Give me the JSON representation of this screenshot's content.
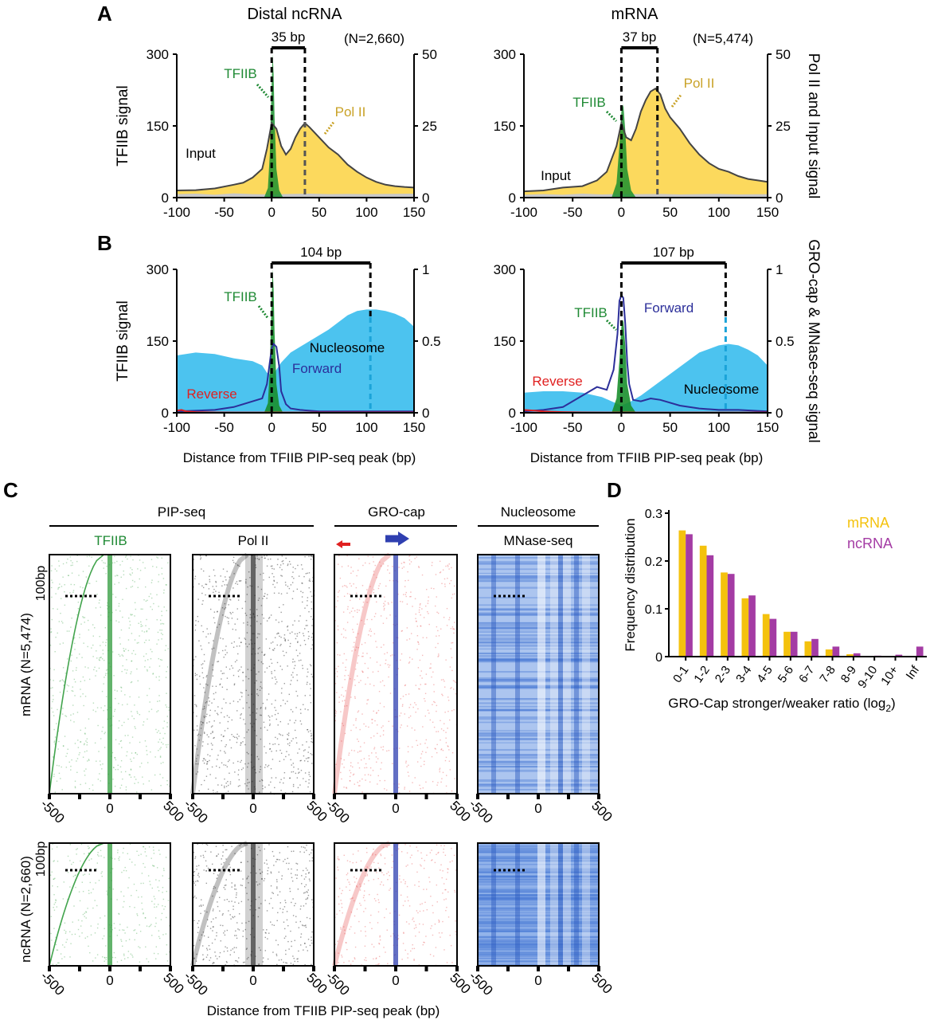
{
  "colors": {
    "tfiib": "#1f8a34",
    "tfiib_fill": "#1a8f2e",
    "pol2_fill": "#fcd95d",
    "pol2_text": "#c9a227",
    "input_fill": "#c8c8c8",
    "nucleosome_fill": "#4cc3ef",
    "forward": "#2c2f9a",
    "reverse": "#e02020",
    "mrna_bar": "#f4c20d",
    "ncrna_bar": "#a43ca4",
    "heat_green": "#2e9a3a",
    "heat_black": "#222222",
    "heat_red": "#e23a3a",
    "heat_blue": "#2f3fb0",
    "heat_mnase": "#3d6fd0"
  },
  "panelA": {
    "label": "A",
    "left_title": "Distal ncRNA",
    "right_title": "mRNA",
    "left_n": "(N=2,660)",
    "right_n": "(N=5,474)",
    "left_gap": "35 bp",
    "right_gap": "37 bp",
    "ylabel_left": "TFIIB signal",
    "ylabel_right": "Pol II and Input signal",
    "lbl_tfiib": "TFIIB",
    "lbl_pol2": "Pol II",
    "lbl_input": "Input"
  },
  "panelB": {
    "label": "B",
    "left_gap": "104 bp",
    "right_gap": "107 bp",
    "ylabel_left": "TFIIB signal",
    "ylabel_right": "GRO-cap & MNase-seq signal",
    "xlabel": "Distance from TFIIB PIP-seq peak (bp)",
    "lbl_tfiib": "TFIIB",
    "lbl_forward": "Forward",
    "lbl_reverse": "Reverse",
    "lbl_nucleosome": "Nucleosome"
  },
  "panelC": {
    "label": "C",
    "group_pipseq": "PIP-seq",
    "group_grocap": "GRO-cap",
    "group_nucleosome": "Nucleosome",
    "col_tfiib": "TFIIB",
    "col_pol2": "Pol II",
    "col_mnase": "MNase-seq",
    "row_mrna": "mRNA (N=5,474)",
    "row_ncrna": "ncRNA (N=2,660)",
    "scale_label": "100bp",
    "xlabel": "Distance from TFIIB PIP-seq peak (bp)",
    "ticks": [
      "-500",
      "0",
      "500"
    ]
  },
  "panelD": {
    "label": "D",
    "legend_mrna": "mRNA",
    "legend_ncrna": "ncRNA"
  },
  "chart_data": [
    {
      "type": "area",
      "panel": "A-left",
      "title": "Distal ncRNA",
      "xlim": [
        -100,
        150
      ],
      "xticks": [
        -100,
        -50,
        0,
        50,
        100,
        150
      ],
      "ylim_left": [
        0,
        300
      ],
      "yticks_left": [
        0,
        150,
        300
      ],
      "ylim_right": [
        0,
        50
      ],
      "yticks_right": [
        0,
        25,
        50
      ],
      "series": [
        {
          "name": "TFIIB",
          "axis": "left",
          "x": [
            -8,
            -4,
            -2,
            0,
            1,
            2,
            3,
            5,
            8,
            12
          ],
          "y": [
            0,
            20,
            90,
            240,
            300,
            260,
            170,
            60,
            15,
            0
          ]
        },
        {
          "name": "Pol II",
          "axis": "right",
          "x": [
            -100,
            -80,
            -60,
            -40,
            -30,
            -20,
            -10,
            -5,
            0,
            5,
            10,
            15,
            20,
            25,
            30,
            35,
            40,
            50,
            60,
            70,
            80,
            90,
            100,
            110,
            120,
            130,
            140,
            150
          ],
          "y": [
            2.5,
            2.6,
            3.2,
            4.5,
            5.2,
            7,
            10,
            17,
            26,
            24,
            18,
            15,
            17,
            21,
            24,
            26,
            24.5,
            21,
            17.5,
            15,
            11.5,
            9,
            7,
            5.5,
            4.5,
            4,
            3.7,
            3.5
          ]
        },
        {
          "name": "Input",
          "axis": "right",
          "x": [
            -100,
            -80,
            -60,
            -40,
            -20,
            0,
            20,
            40,
            60,
            80,
            100,
            120,
            150
          ],
          "y": [
            1.2,
            1.4,
            1.0,
            1.5,
            1.2,
            1.1,
            1.3,
            1.4,
            1.2,
            1.3,
            1.2,
            1.3,
            1.4
          ]
        }
      ],
      "annotation": {
        "from": 0,
        "to": 35,
        "label": "35 bp"
      }
    },
    {
      "type": "area",
      "panel": "A-right",
      "title": "mRNA",
      "xlim": [
        -100,
        150
      ],
      "xticks": [
        -100,
        -50,
        0,
        50,
        100,
        150
      ],
      "ylim_left": [
        0,
        300
      ],
      "yticks_left": [
        0,
        150,
        300
      ],
      "ylim_right": [
        0,
        50
      ],
      "yticks_right": [
        0,
        25,
        50
      ],
      "series": [
        {
          "name": "TFIIB",
          "axis": "left",
          "x": [
            -10,
            -5,
            -2,
            0,
            2,
            4,
            6,
            10,
            15
          ],
          "y": [
            0,
            30,
            110,
            180,
            195,
            140,
            60,
            15,
            0
          ]
        },
        {
          "name": "Pol II",
          "axis": "right",
          "x": [
            -100,
            -80,
            -60,
            -40,
            -25,
            -15,
            -5,
            0,
            5,
            10,
            15,
            20,
            25,
            30,
            35,
            40,
            45,
            50,
            60,
            70,
            80,
            90,
            100,
            110,
            120,
            130,
            140,
            150
          ],
          "y": [
            2.2,
            2.5,
            3.5,
            4,
            6,
            9,
            18,
            26,
            21,
            20,
            24,
            30,
            34,
            37,
            38,
            36,
            31,
            28,
            24,
            19,
            15,
            12,
            10,
            9,
            7.5,
            6.5,
            6,
            5.5
          ]
        },
        {
          "name": "Input",
          "axis": "right",
          "x": [
            -100,
            -80,
            -60,
            -40,
            -20,
            0,
            20,
            40,
            60,
            80,
            100,
            120,
            150
          ],
          "y": [
            1.0,
            1.2,
            1.0,
            1.4,
            1.1,
            1.3,
            1.2,
            1.3,
            1.1,
            1.2,
            1.3,
            1.1,
            1.2
          ]
        }
      ],
      "annotation": {
        "from": 0,
        "to": 37,
        "label": "37 bp"
      }
    },
    {
      "type": "area",
      "panel": "B-left",
      "xlim": [
        -100,
        150
      ],
      "xticks": [
        -100,
        -50,
        0,
        50,
        100,
        150
      ],
      "ylim_left": [
        0,
        300
      ],
      "yticks_left": [
        0,
        150,
        300
      ],
      "ylim_right": [
        0,
        1
      ],
      "yticks_right": [
        0,
        0.5,
        1
      ],
      "series": [
        {
          "name": "TFIIB",
          "axis": "left",
          "x": [
            -8,
            -4,
            -2,
            0,
            1,
            2,
            3,
            5,
            8,
            12
          ],
          "y": [
            0,
            20,
            90,
            240,
            300,
            260,
            170,
            60,
            15,
            0
          ]
        },
        {
          "name": "Nucleosome",
          "axis": "right",
          "x": [
            -100,
            -80,
            -60,
            -40,
            -20,
            -10,
            -5,
            0,
            5,
            10,
            20,
            40,
            60,
            80,
            90,
            100,
            110,
            120,
            130,
            140,
            150
          ],
          "y": [
            0.4,
            0.42,
            0.41,
            0.38,
            0.36,
            0.33,
            0.28,
            0.26,
            0.3,
            0.35,
            0.42,
            0.5,
            0.58,
            0.68,
            0.71,
            0.72,
            0.72,
            0.71,
            0.69,
            0.66,
            0.6
          ]
        },
        {
          "name": "Forward",
          "axis": "right",
          "x": [
            -100,
            -60,
            -40,
            -30,
            -20,
            -10,
            -5,
            0,
            2,
            5,
            8,
            10,
            15,
            20,
            30,
            50,
            80,
            150
          ],
          "y": [
            0.01,
            0.02,
            0.04,
            0.06,
            0.08,
            0.1,
            0.2,
            0.45,
            0.48,
            0.46,
            0.32,
            0.15,
            0.06,
            0.03,
            0.02,
            0.01,
            0.01,
            0.01
          ]
        },
        {
          "name": "Reverse",
          "axis": "right",
          "x": [
            -100,
            -95,
            -90,
            -80,
            -60,
            -40,
            0,
            50,
            100,
            150
          ],
          "y": [
            0.015,
            0.02,
            0.01,
            0.005,
            0.003,
            0.002,
            0.002,
            0.002,
            0.002,
            0.002
          ]
        }
      ],
      "annotation": {
        "from": 0,
        "to": 104,
        "label": "104 bp"
      }
    },
    {
      "type": "area",
      "panel": "B-right",
      "xlim": [
        -100,
        150
      ],
      "xticks": [
        -100,
        -50,
        0,
        50,
        100,
        150
      ],
      "ylim_left": [
        0,
        300
      ],
      "yticks_left": [
        0,
        150,
        300
      ],
      "ylim_right": [
        0,
        1
      ],
      "yticks_right": [
        0,
        0.5,
        1
      ],
      "series": [
        {
          "name": "TFIIB",
          "axis": "left",
          "x": [
            -10,
            -5,
            -2,
            0,
            2,
            4,
            6,
            10,
            15
          ],
          "y": [
            0,
            30,
            110,
            180,
            195,
            140,
            60,
            15,
            0
          ]
        },
        {
          "name": "Nucleosome",
          "axis": "right",
          "x": [
            -100,
            -80,
            -60,
            -40,
            -20,
            -10,
            0,
            10,
            20,
            40,
            60,
            80,
            100,
            110,
            120,
            130,
            140,
            150
          ],
          "y": [
            0.14,
            0.15,
            0.15,
            0.14,
            0.11,
            0.08,
            0.05,
            0.08,
            0.12,
            0.22,
            0.32,
            0.42,
            0.47,
            0.48,
            0.47,
            0.44,
            0.4,
            0.33
          ]
        },
        {
          "name": "Forward",
          "axis": "right",
          "x": [
            -100,
            -80,
            -60,
            -40,
            -25,
            -15,
            -8,
            -4,
            -2,
            0,
            2,
            4,
            6,
            8,
            12,
            20,
            30,
            40,
            60,
            80,
            100,
            120,
            150
          ],
          "y": [
            0.01,
            0.02,
            0.04,
            0.12,
            0.18,
            0.16,
            0.3,
            0.55,
            0.78,
            0.82,
            0.8,
            0.62,
            0.35,
            0.2,
            0.09,
            0.08,
            0.1,
            0.09,
            0.05,
            0.03,
            0.02,
            0.02,
            0.01
          ]
        },
        {
          "name": "Reverse",
          "axis": "right",
          "x": [
            -100,
            -90,
            -80,
            -60,
            -40,
            0,
            50,
            100,
            150
          ],
          "y": [
            0.02,
            0.015,
            0.01,
            0.005,
            0.003,
            0.002,
            0.002,
            0.002,
            0.002
          ]
        }
      ],
      "annotation": {
        "from": 0,
        "to": 107,
        "label": "107 bp"
      }
    },
    {
      "type": "heatmap",
      "panel": "C",
      "columns": [
        "TFIIB",
        "Pol II",
        "GRO-cap",
        "MNase-seq"
      ],
      "rows": [
        "mRNA (N=5,474)",
        "ncRNA (N=2,660)"
      ],
      "xlim": [
        -500,
        500
      ],
      "xticks": [
        -500,
        0,
        500
      ]
    },
    {
      "type": "bar",
      "panel": "D",
      "categories": [
        "0-1",
        "1-2",
        "2-3",
        "3-4",
        "4-5",
        "5-6",
        "6-7",
        "7-8",
        "8-9",
        "9-10",
        "10+",
        "Inf"
      ],
      "series": [
        {
          "name": "mRNA",
          "values": [
            0.264,
            0.232,
            0.176,
            0.122,
            0.089,
            0.052,
            0.032,
            0.015,
            0.005,
            0.001,
            0.001,
            0.001
          ]
        },
        {
          "name": "ncRNA",
          "values": [
            0.256,
            0.212,
            0.173,
            0.128,
            0.079,
            0.052,
            0.037,
            0.021,
            0.007,
            0.002,
            0.004,
            0.021
          ]
        }
      ],
      "ylim": [
        0,
        0.3
      ],
      "yticks": [
        0,
        0.1,
        0.2,
        0.3
      ],
      "xlabel": "GRO-Cap stronger/weaker ratio (log",
      "xlabel_sub": "2",
      "xlabel_end": ")",
      "ylabel": "Frequency distribution"
    }
  ]
}
